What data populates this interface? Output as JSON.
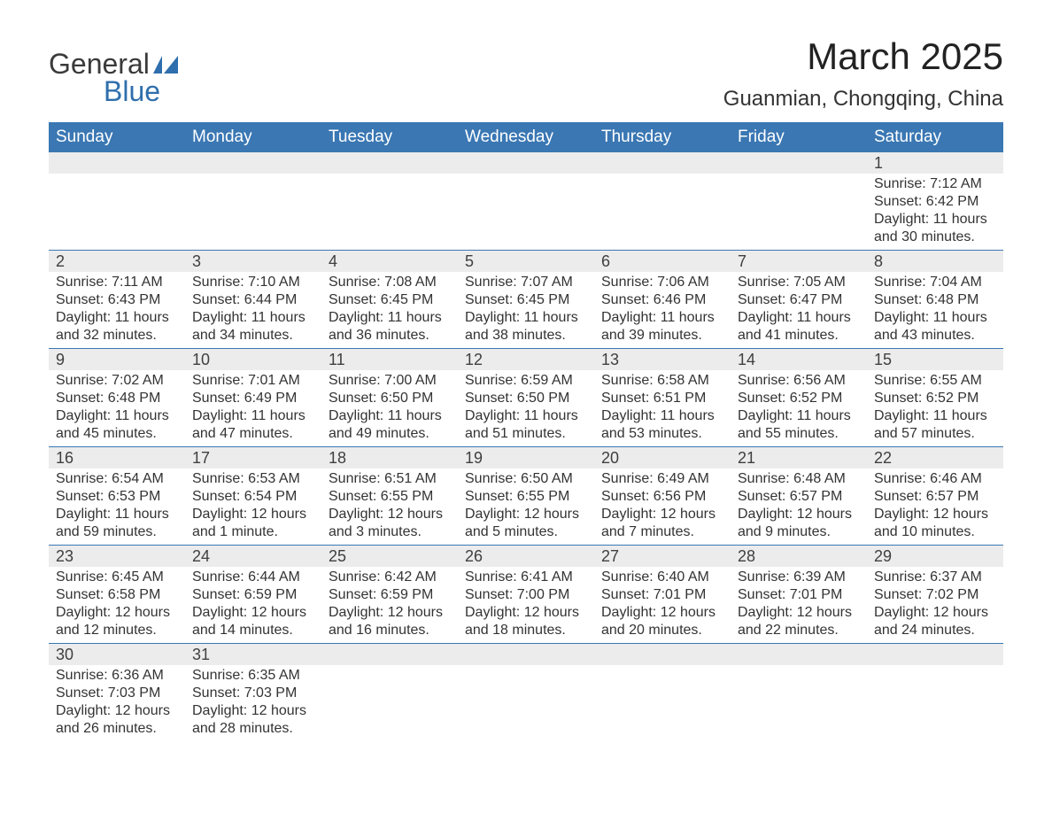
{
  "logo": {
    "text1": "General",
    "text2": "Blue",
    "shape_color": "#2f6fad"
  },
  "title": "March 2025",
  "location": "Guanmian, Chongqing, China",
  "colors": {
    "header_bg": "#3a77b3",
    "header_text": "#ffffff",
    "daynum_bg": "#ececec",
    "row_divider": "#3a77b3",
    "text": "#333333",
    "bg": "#ffffff"
  },
  "day_headers": [
    "Sunday",
    "Monday",
    "Tuesday",
    "Wednesday",
    "Thursday",
    "Friday",
    "Saturday"
  ],
  "weeks": [
    [
      null,
      null,
      null,
      null,
      null,
      null,
      {
        "n": "1",
        "sr": "Sunrise: 7:12 AM",
        "ss": "Sunset: 6:42 PM",
        "d1": "Daylight: 11 hours",
        "d2": "and 30 minutes."
      }
    ],
    [
      {
        "n": "2",
        "sr": "Sunrise: 7:11 AM",
        "ss": "Sunset: 6:43 PM",
        "d1": "Daylight: 11 hours",
        "d2": "and 32 minutes."
      },
      {
        "n": "3",
        "sr": "Sunrise: 7:10 AM",
        "ss": "Sunset: 6:44 PM",
        "d1": "Daylight: 11 hours",
        "d2": "and 34 minutes."
      },
      {
        "n": "4",
        "sr": "Sunrise: 7:08 AM",
        "ss": "Sunset: 6:45 PM",
        "d1": "Daylight: 11 hours",
        "d2": "and 36 minutes."
      },
      {
        "n": "5",
        "sr": "Sunrise: 7:07 AM",
        "ss": "Sunset: 6:45 PM",
        "d1": "Daylight: 11 hours",
        "d2": "and 38 minutes."
      },
      {
        "n": "6",
        "sr": "Sunrise: 7:06 AM",
        "ss": "Sunset: 6:46 PM",
        "d1": "Daylight: 11 hours",
        "d2": "and 39 minutes."
      },
      {
        "n": "7",
        "sr": "Sunrise: 7:05 AM",
        "ss": "Sunset: 6:47 PM",
        "d1": "Daylight: 11 hours",
        "d2": "and 41 minutes."
      },
      {
        "n": "8",
        "sr": "Sunrise: 7:04 AM",
        "ss": "Sunset: 6:48 PM",
        "d1": "Daylight: 11 hours",
        "d2": "and 43 minutes."
      }
    ],
    [
      {
        "n": "9",
        "sr": "Sunrise: 7:02 AM",
        "ss": "Sunset: 6:48 PM",
        "d1": "Daylight: 11 hours",
        "d2": "and 45 minutes."
      },
      {
        "n": "10",
        "sr": "Sunrise: 7:01 AM",
        "ss": "Sunset: 6:49 PM",
        "d1": "Daylight: 11 hours",
        "d2": "and 47 minutes."
      },
      {
        "n": "11",
        "sr": "Sunrise: 7:00 AM",
        "ss": "Sunset: 6:50 PM",
        "d1": "Daylight: 11 hours",
        "d2": "and 49 minutes."
      },
      {
        "n": "12",
        "sr": "Sunrise: 6:59 AM",
        "ss": "Sunset: 6:50 PM",
        "d1": "Daylight: 11 hours",
        "d2": "and 51 minutes."
      },
      {
        "n": "13",
        "sr": "Sunrise: 6:58 AM",
        "ss": "Sunset: 6:51 PM",
        "d1": "Daylight: 11 hours",
        "d2": "and 53 minutes."
      },
      {
        "n": "14",
        "sr": "Sunrise: 6:56 AM",
        "ss": "Sunset: 6:52 PM",
        "d1": "Daylight: 11 hours",
        "d2": "and 55 minutes."
      },
      {
        "n": "15",
        "sr": "Sunrise: 6:55 AM",
        "ss": "Sunset: 6:52 PM",
        "d1": "Daylight: 11 hours",
        "d2": "and 57 minutes."
      }
    ],
    [
      {
        "n": "16",
        "sr": "Sunrise: 6:54 AM",
        "ss": "Sunset: 6:53 PM",
        "d1": "Daylight: 11 hours",
        "d2": "and 59 minutes."
      },
      {
        "n": "17",
        "sr": "Sunrise: 6:53 AM",
        "ss": "Sunset: 6:54 PM",
        "d1": "Daylight: 12 hours",
        "d2": "and 1 minute."
      },
      {
        "n": "18",
        "sr": "Sunrise: 6:51 AM",
        "ss": "Sunset: 6:55 PM",
        "d1": "Daylight: 12 hours",
        "d2": "and 3 minutes."
      },
      {
        "n": "19",
        "sr": "Sunrise: 6:50 AM",
        "ss": "Sunset: 6:55 PM",
        "d1": "Daylight: 12 hours",
        "d2": "and 5 minutes."
      },
      {
        "n": "20",
        "sr": "Sunrise: 6:49 AM",
        "ss": "Sunset: 6:56 PM",
        "d1": "Daylight: 12 hours",
        "d2": "and 7 minutes."
      },
      {
        "n": "21",
        "sr": "Sunrise: 6:48 AM",
        "ss": "Sunset: 6:57 PM",
        "d1": "Daylight: 12 hours",
        "d2": "and 9 minutes."
      },
      {
        "n": "22",
        "sr": "Sunrise: 6:46 AM",
        "ss": "Sunset: 6:57 PM",
        "d1": "Daylight: 12 hours",
        "d2": "and 10 minutes."
      }
    ],
    [
      {
        "n": "23",
        "sr": "Sunrise: 6:45 AM",
        "ss": "Sunset: 6:58 PM",
        "d1": "Daylight: 12 hours",
        "d2": "and 12 minutes."
      },
      {
        "n": "24",
        "sr": "Sunrise: 6:44 AM",
        "ss": "Sunset: 6:59 PM",
        "d1": "Daylight: 12 hours",
        "d2": "and 14 minutes."
      },
      {
        "n": "25",
        "sr": "Sunrise: 6:42 AM",
        "ss": "Sunset: 6:59 PM",
        "d1": "Daylight: 12 hours",
        "d2": "and 16 minutes."
      },
      {
        "n": "26",
        "sr": "Sunrise: 6:41 AM",
        "ss": "Sunset: 7:00 PM",
        "d1": "Daylight: 12 hours",
        "d2": "and 18 minutes."
      },
      {
        "n": "27",
        "sr": "Sunrise: 6:40 AM",
        "ss": "Sunset: 7:01 PM",
        "d1": "Daylight: 12 hours",
        "d2": "and 20 minutes."
      },
      {
        "n": "28",
        "sr": "Sunrise: 6:39 AM",
        "ss": "Sunset: 7:01 PM",
        "d1": "Daylight: 12 hours",
        "d2": "and 22 minutes."
      },
      {
        "n": "29",
        "sr": "Sunrise: 6:37 AM",
        "ss": "Sunset: 7:02 PM",
        "d1": "Daylight: 12 hours",
        "d2": "and 24 minutes."
      }
    ],
    [
      {
        "n": "30",
        "sr": "Sunrise: 6:36 AM",
        "ss": "Sunset: 7:03 PM",
        "d1": "Daylight: 12 hours",
        "d2": "and 26 minutes."
      },
      {
        "n": "31",
        "sr": "Sunrise: 6:35 AM",
        "ss": "Sunset: 7:03 PM",
        "d1": "Daylight: 12 hours",
        "d2": "and 28 minutes."
      },
      null,
      null,
      null,
      null,
      null
    ]
  ]
}
